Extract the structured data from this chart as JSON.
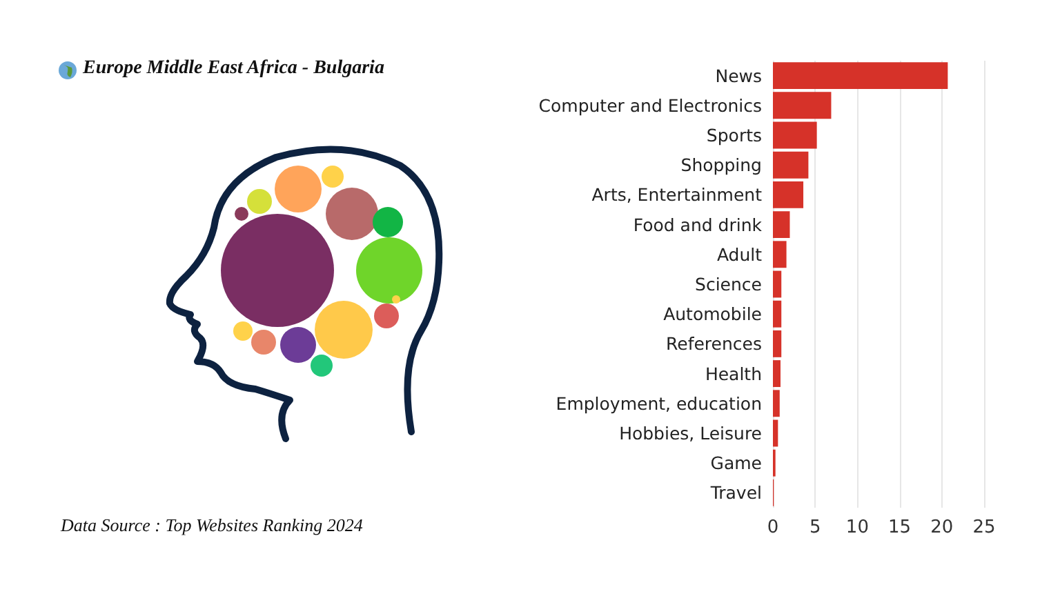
{
  "chart_data": {
    "type": "bar",
    "orientation": "horizontal",
    "title": "Europe Middle East Africa - Bulgaria",
    "annotations": [
      "Data Source : Top Websites Ranking 2024"
    ],
    "categories": [
      "News",
      "Computer and Electronics",
      "Sports",
      "Shopping",
      "Arts, Entertainment",
      "Food and drink",
      "Adult",
      "Science",
      "Automobile",
      "References",
      "Health",
      "Employment, education",
      "Hobbies, Leisure",
      "Game",
      "Travel"
    ],
    "values": [
      20.7,
      6.9,
      5.2,
      4.2,
      3.6,
      2.0,
      1.6,
      1.0,
      1.0,
      1.0,
      0.9,
      0.8,
      0.6,
      0.3,
      0.1
    ],
    "color": "#d63229",
    "xlim": [
      0,
      25
    ],
    "xticks": [
      0,
      5,
      10,
      15,
      20,
      25
    ],
    "grid": "x"
  }
}
